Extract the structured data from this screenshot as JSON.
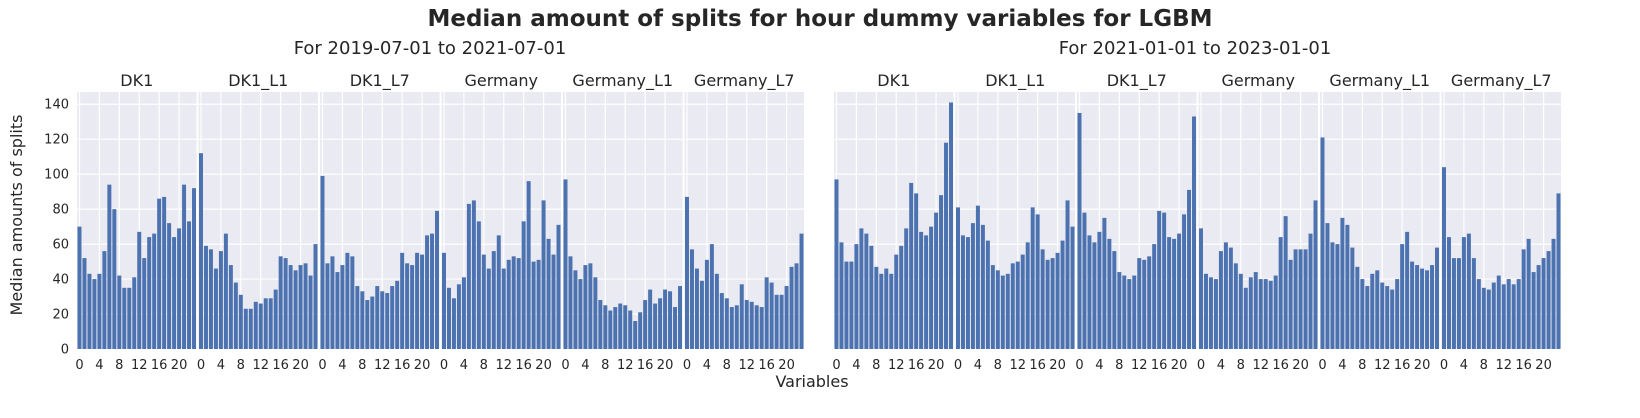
{
  "figure_title": "Median amount of splits for hour dummy variables for LGBM",
  "ylabel": "Median amounts of splits",
  "xlabel": "Variables",
  "chart_data": [
    {
      "type": "bar",
      "subtitle": "For 2019-07-01 to 2021-07-01",
      "ylim": [
        0,
        147
      ],
      "yticks": [
        0,
        20,
        40,
        60,
        80,
        100,
        120,
        140
      ],
      "xticks": [
        0,
        4,
        8,
        12,
        16,
        20
      ],
      "grid": true,
      "bar_color": "#4c72b0",
      "background": "#eaeaf2",
      "categories": [
        0,
        1,
        2,
        3,
        4,
        5,
        6,
        7,
        8,
        9,
        10,
        11,
        12,
        13,
        14,
        15,
        16,
        17,
        18,
        19,
        20,
        21,
        22,
        23
      ],
      "series": [
        {
          "name": "DK1",
          "values": [
            70,
            52,
            43,
            40,
            43,
            56,
            94,
            80,
            42,
            35,
            35,
            41,
            67,
            52,
            64,
            66,
            86,
            87,
            72,
            64,
            69,
            94,
            73,
            92
          ]
        },
        {
          "name": "DK1_L1",
          "values": [
            112,
            59,
            57,
            46,
            56,
            66,
            48,
            38,
            31,
            23,
            23,
            27,
            26,
            29,
            29,
            34,
            53,
            52,
            48,
            45,
            48,
            49,
            42,
            60
          ]
        },
        {
          "name": "DK1_L7",
          "values": [
            99,
            49,
            53,
            44,
            48,
            55,
            53,
            36,
            33,
            28,
            30,
            36,
            33,
            32,
            36,
            39,
            55,
            49,
            48,
            55,
            54,
            65,
            66,
            79
          ]
        },
        {
          "name": "Germany",
          "values": [
            55,
            35,
            29,
            37,
            41,
            83,
            85,
            73,
            54,
            46,
            56,
            65,
            46,
            51,
            53,
            52,
            73,
            96,
            50,
            51,
            85,
            63,
            54,
            71
          ]
        },
        {
          "name": "Germany_L1",
          "values": [
            97,
            53,
            45,
            40,
            48,
            49,
            41,
            28,
            25,
            22,
            24,
            26,
            25,
            22,
            16,
            21,
            28,
            34,
            26,
            29,
            34,
            33,
            24,
            36
          ]
        },
        {
          "name": "Germany_L7",
          "values": [
            87,
            57,
            46,
            39,
            51,
            60,
            43,
            32,
            29,
            24,
            25,
            37,
            28,
            27,
            25,
            24,
            41,
            38,
            31,
            31,
            36,
            47,
            49,
            66
          ]
        }
      ]
    },
    {
      "type": "bar",
      "subtitle": "For 2021-01-01 to 2023-01-01",
      "ylim": [
        0,
        147
      ],
      "xticks": [
        0,
        4,
        8,
        12,
        16,
        20
      ],
      "grid": true,
      "bar_color": "#4c72b0",
      "background": "#eaeaf2",
      "categories": [
        0,
        1,
        2,
        3,
        4,
        5,
        6,
        7,
        8,
        9,
        10,
        11,
        12,
        13,
        14,
        15,
        16,
        17,
        18,
        19,
        20,
        21,
        22,
        23
      ],
      "series": [
        {
          "name": "DK1",
          "values": [
            97,
            61,
            50,
            50,
            60,
            69,
            66,
            59,
            47,
            43,
            46,
            43,
            54,
            59,
            69,
            95,
            89,
            67,
            65,
            70,
            78,
            88,
            118,
            141
          ]
        },
        {
          "name": "DK1_L1",
          "values": [
            81,
            65,
            64,
            72,
            82,
            71,
            62,
            48,
            45,
            42,
            43,
            49,
            50,
            54,
            61,
            81,
            77,
            57,
            51,
            52,
            55,
            62,
            85,
            70
          ]
        },
        {
          "name": "DK1_L7",
          "values": [
            135,
            78,
            65,
            61,
            67,
            75,
            63,
            56,
            44,
            42,
            40,
            42,
            52,
            51,
            53,
            60,
            79,
            78,
            64,
            63,
            66,
            77,
            91,
            133
          ]
        },
        {
          "name": "Germany",
          "values": [
            69,
            43,
            41,
            40,
            56,
            61,
            58,
            49,
            43,
            35,
            41,
            44,
            40,
            40,
            39,
            42,
            64,
            76,
            51,
            57,
            57,
            57,
            66,
            85
          ]
        },
        {
          "name": "Germany_L1",
          "values": [
            121,
            72,
            61,
            60,
            75,
            71,
            58,
            47,
            40,
            36,
            43,
            45,
            38,
            36,
            34,
            40,
            60,
            67,
            50,
            48,
            46,
            45,
            48,
            58
          ]
        },
        {
          "name": "Germany_L7",
          "values": [
            104,
            64,
            52,
            52,
            64,
            66,
            52,
            40,
            35,
            34,
            38,
            42,
            37,
            40,
            37,
            40,
            57,
            63,
            44,
            48,
            52,
            56,
            63,
            89
          ]
        }
      ]
    }
  ]
}
